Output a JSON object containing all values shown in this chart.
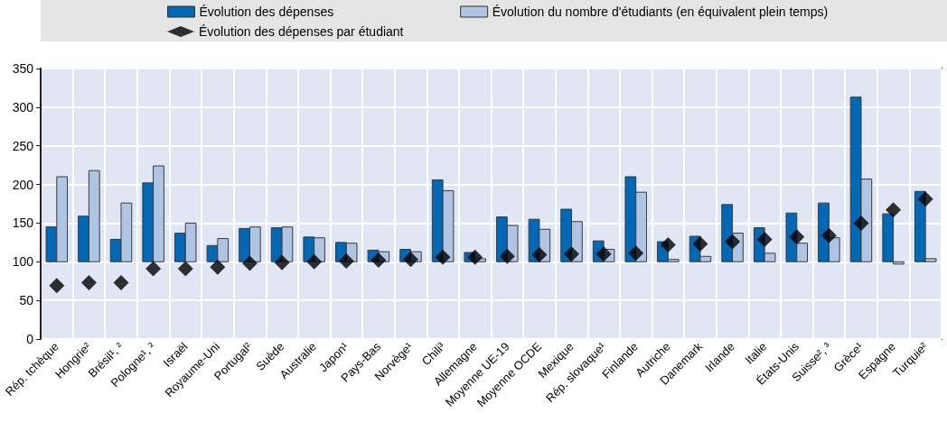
{
  "chart_data": {
    "type": "bar",
    "categories": [
      "Rép. tchèque",
      "Hongrie²",
      "Brésil¹, ²",
      "Pologne¹, ²",
      "Israël",
      "Royaume-Uni",
      "Portugal²",
      "Suède",
      "Australie",
      "Japon¹",
      "Pays-Bas",
      "Norvège¹",
      "Chili³",
      "Allemagne",
      "Moyenne UE-19",
      "Moyenne OCDE",
      "Mexique",
      "Rép. slovaque¹",
      "Finlande",
      "Autriche",
      "Danemark",
      "Irlande",
      "Italie",
      "États-Unis",
      "Suisse², ³",
      "Grèce¹",
      "Espagne",
      "Turquie²"
    ],
    "series": [
      {
        "name": "Évolution des dépenses",
        "color": "#0068b4",
        "base": [
          100,
          100,
          100,
          100,
          100,
          100,
          100,
          100,
          100,
          100,
          100,
          100,
          100,
          100,
          100,
          100,
          100,
          100,
          100,
          100,
          100,
          100,
          100,
          100,
          100,
          100,
          100,
          100
        ],
        "values": [
          45,
          59,
          29,
          102,
          37,
          21,
          43,
          44,
          32,
          25,
          15,
          16,
          106,
          12,
          58,
          55,
          68,
          27,
          110,
          26,
          33,
          74,
          44,
          63,
          76,
          213,
          62,
          91
        ]
      },
      {
        "name": "Évolution du nombre d'étudiants (en équivalent plein temps)",
        "color": "#b0c4e4",
        "base": [
          100,
          100,
          100,
          100,
          100,
          100,
          100,
          100,
          100,
          100,
          100,
          100,
          100,
          100,
          100,
          100,
          100,
          100,
          100,
          100,
          100,
          100,
          100,
          100,
          100,
          100,
          100,
          100
        ],
        "values": [
          110,
          118,
          76,
          124,
          50,
          30,
          45,
          45,
          31,
          24,
          13,
          13,
          92,
          4,
          47,
          42,
          52,
          16,
          90,
          3,
          7,
          37,
          11,
          24,
          31,
          107,
          -3,
          4
        ]
      },
      {
        "name": "Évolution des dépenses par étudiant",
        "type": "scatter",
        "color": "#000000",
        "values": [
          69,
          73,
          73,
          91,
          91,
          93,
          98,
          99,
          100,
          101,
          102,
          103,
          106,
          106,
          107,
          109,
          110,
          110,
          111,
          122,
          123,
          126,
          129,
          132,
          134,
          150,
          167,
          181
        ]
      }
    ],
    "ylim": [
      0,
      350
    ],
    "yticks": [
      0,
      50,
      100,
      150,
      200,
      250,
      300,
      350
    ],
    "grid": true,
    "legend": "top",
    "marker": "diamond"
  }
}
